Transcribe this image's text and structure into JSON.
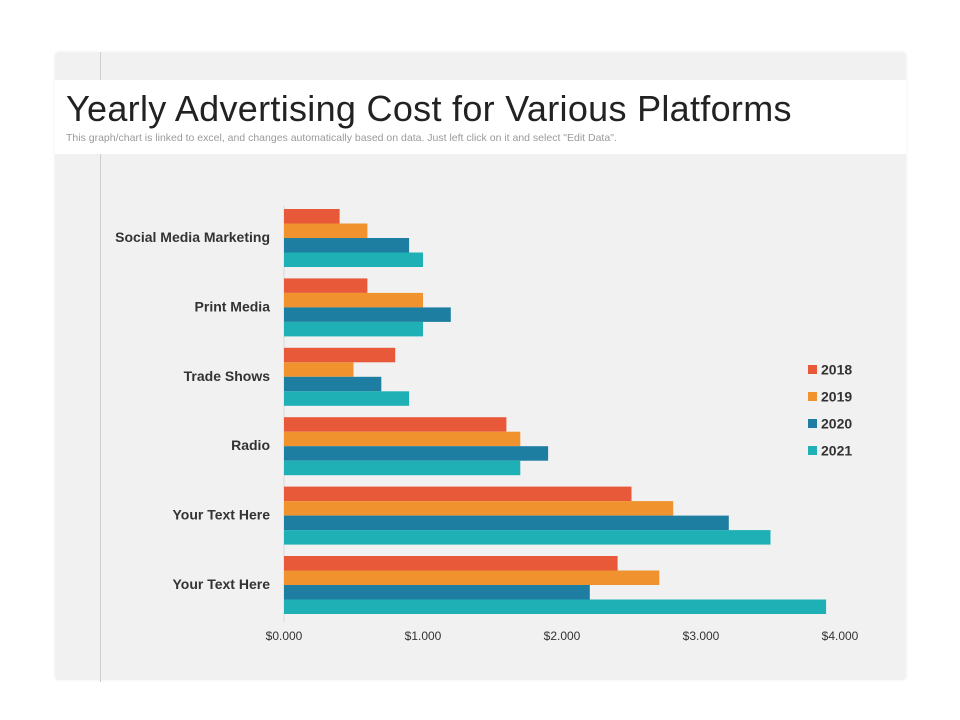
{
  "slide": {
    "title": "Yearly Advertising Cost for Various Platforms",
    "subtitle": "This graph/chart is linked to excel, and changes automatically based on data. Just left click on it and select \"Edit Data\"."
  },
  "chart_data": {
    "type": "bar",
    "orientation": "horizontal",
    "title": "Yearly Advertising Cost for Various Platforms",
    "xlabel": "",
    "ylabel": "",
    "xlim": [
      0,
      4
    ],
    "ticks": [
      {
        "value": 0,
        "label": "$0.000"
      },
      {
        "value": 1,
        "label": "$1.000"
      },
      {
        "value": 2,
        "label": "$2.000"
      },
      {
        "value": 3,
        "label": "$3.000"
      },
      {
        "value": 4,
        "label": "$4.000"
      }
    ],
    "grid": false,
    "legend_position": "right",
    "categories": [
      "Social Media Marketing",
      "Print Media",
      "Trade Shows",
      "Radio",
      "Your Text Here",
      "Your Text Here"
    ],
    "series": [
      {
        "name": "2018",
        "color": "#e8593a",
        "values": [
          0.4,
          0.6,
          0.8,
          1.6,
          2.5,
          2.4
        ]
      },
      {
        "name": "2019",
        "color": "#f0932f",
        "values": [
          0.6,
          1.0,
          0.5,
          1.7,
          2.8,
          2.7
        ]
      },
      {
        "name": "2020",
        "color": "#1d7ea1",
        "values": [
          0.9,
          1.2,
          0.7,
          1.9,
          3.2,
          2.2
        ]
      },
      {
        "name": "2021",
        "color": "#1fb0b5",
        "values": [
          1.0,
          1.0,
          0.9,
          1.7,
          3.5,
          3.9
        ]
      }
    ]
  }
}
